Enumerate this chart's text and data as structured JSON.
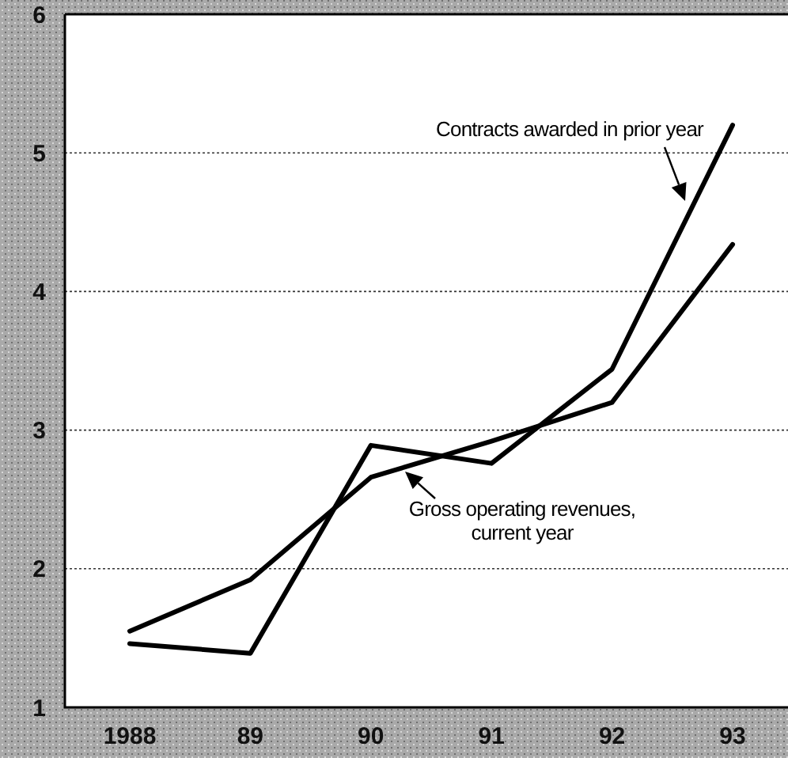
{
  "chart_data": {
    "type": "line",
    "categories": [
      "1988",
      "89",
      "90",
      "91",
      "92",
      "93"
    ],
    "series": [
      {
        "name": "Contracts awarded in prior year",
        "color": "#000000",
        "values": [
          1.46,
          1.39,
          2.89,
          2.76,
          3.44,
          5.2
        ]
      },
      {
        "name": "Gross operating revenues,\ncurrent year",
        "color": "#000000",
        "values": [
          1.55,
          1.92,
          2.66,
          2.92,
          3.2,
          4.34
        ]
      }
    ],
    "ylim": [
      1,
      6
    ],
    "yticks": [
      1,
      2,
      3,
      4,
      5,
      6
    ],
    "grid": "y",
    "marker": "none",
    "line_style": "solid"
  }
}
